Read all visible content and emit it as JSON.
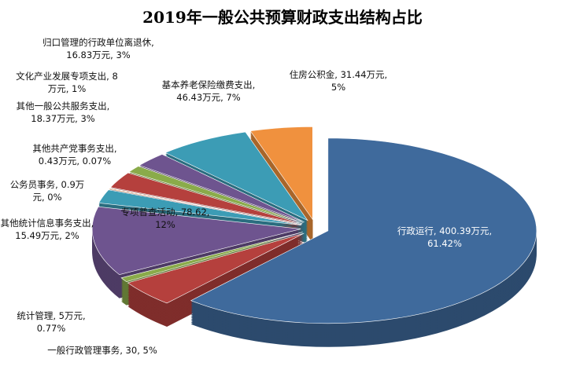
{
  "chart_data": {
    "type": "pie",
    "title": "2019年一般公共预算财政支出结构占比",
    "values": [
      400.39,
      30,
      5,
      78.62,
      15.49,
      0.9,
      0.43,
      18.37,
      8,
      16.83,
      46.43,
      31.44
    ],
    "percents": [
      61.42,
      5,
      0.77,
      12,
      2,
      0,
      0.07,
      3,
      1,
      3,
      7,
      5
    ],
    "value_labels": [
      "行政运行, 400.39万元, 61.42%",
      "一般行政管理事务, 30, 5%",
      "统计管理, 5万元, 0.77%",
      "专项普查活动, 78.62, 12%",
      "其他统计信息事务支出, 15.49万元, 2%",
      "公务员事务, 0.9万元, 0%",
      "其他共产党事务支出, 0.43万元, 0.07%",
      "其他一般公共服务支出, 18.37万元, 3%",
      "文化产业发展专项支出, 8万元, 1%",
      "归口管理的行政单位离退休, 16.83万元, 3%",
      "基本养老保险缴费支出, 46.43万元, 7%",
      "住房公积金, 31.44万元, 5%"
    ],
    "colors": [
      "#3f6a9c",
      "#b5403d",
      "#8aab4a",
      "#6e548f",
      "#3c9cb5",
      "#f0913e",
      "#3f6a9c",
      "#b5403d",
      "#8aab4a",
      "#6e548f",
      "#3c9cb5",
      "#f0913e"
    ]
  }
}
